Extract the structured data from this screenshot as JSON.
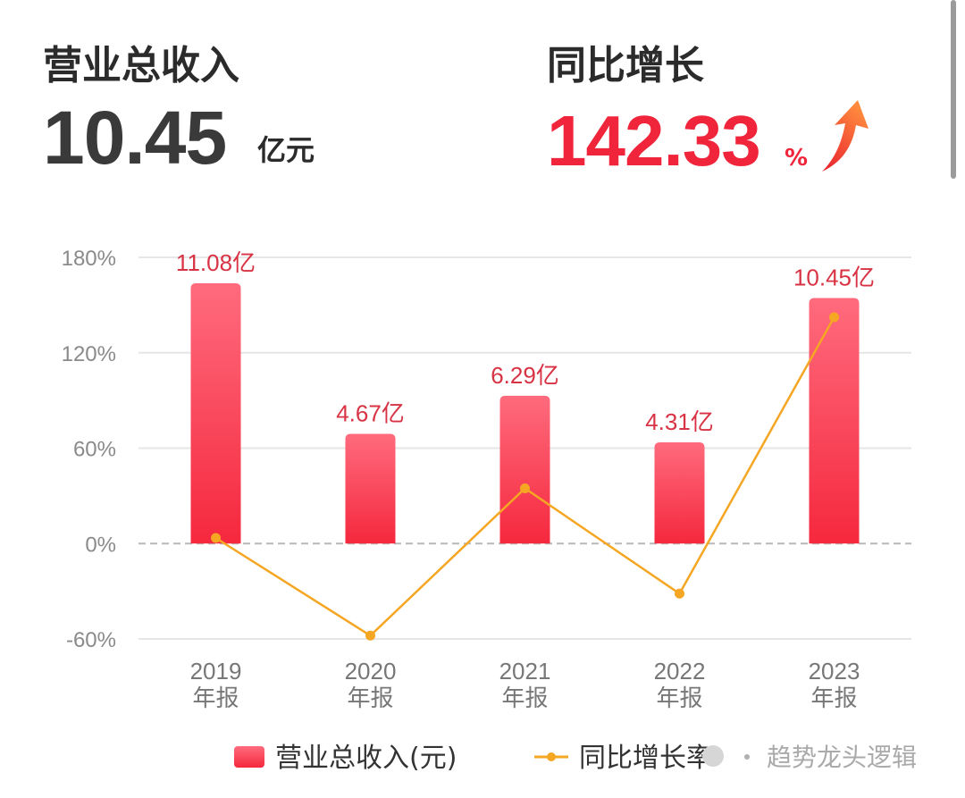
{
  "kpis": {
    "revenue": {
      "label": "营业总收入",
      "value": "10.45",
      "unit": "亿元"
    },
    "growth": {
      "label": "同比增长",
      "value": "142.33",
      "unit": "%"
    }
  },
  "colors": {
    "bar_top": "#ff6b7d",
    "bar_bottom": "#f5283e",
    "line": "#f5a623",
    "accent_red": "#f0243a"
  },
  "watermark": {
    "text": "趋势龙头逻辑"
  },
  "chart_data": {
    "type": "bar",
    "title": "",
    "categories": [
      "2019\n年报",
      "2020\n年报",
      "2021\n年报",
      "2022\n年报",
      "2023\n年报"
    ],
    "series": [
      {
        "name": "营业总收入(元)",
        "type": "bar",
        "values": [
          11.08,
          4.67,
          6.29,
          4.31,
          10.45
        ],
        "labels": [
          "11.08亿",
          "4.67亿",
          "6.29亿",
          "4.31亿",
          "10.45亿"
        ]
      },
      {
        "name": "同比增长率",
        "type": "line",
        "values": [
          3.5,
          -57.9,
          34.7,
          -31.5,
          142.33
        ]
      }
    ],
    "y_left": {
      "ticks": [
        180,
        120,
        60,
        0,
        -60
      ],
      "tick_labels": [
        "180%",
        "120%",
        "60%",
        "0%",
        "-60%"
      ],
      "range": [
        -60,
        180
      ]
    },
    "bar_scale_max": 12,
    "grid": true,
    "zero_line": "dashed",
    "legend": "bottom"
  }
}
